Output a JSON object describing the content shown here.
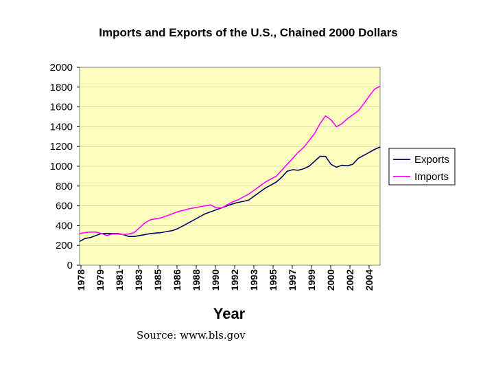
{
  "chart_data": {
    "type": "line",
    "title": "Imports and Exports of the U.S., Chained 2000 Dollars",
    "xlabel": "Year",
    "ylabel": "",
    "ylim": [
      0,
      2000
    ],
    "xlim": [
      1978,
      2005.5
    ],
    "y_ticks": [
      "0",
      "200",
      "400",
      "600",
      "800",
      "1000",
      "1200",
      "1400",
      "1600",
      "1800",
      "2000"
    ],
    "x_ticks": [
      "1978",
      "1979",
      "1981",
      "1983",
      "1985",
      "1986",
      "1988",
      "1990",
      "1992",
      "1993",
      "1995",
      "1997",
      "1999",
      "2000",
      "2002",
      "2004"
    ],
    "grid": "horizontal",
    "legend": "right",
    "background": "#FFFFC0",
    "series": [
      {
        "name": "Exports",
        "color": "#000066",
        "x": [
          1978,
          1978.5,
          1979,
          1979.5,
          1980,
          1980.5,
          1981,
          1981.5,
          1982,
          1982.5,
          1983,
          1983.5,
          1984,
          1984.5,
          1985,
          1985.5,
          1986,
          1986.5,
          1987,
          1987.5,
          1988,
          1988.5,
          1989,
          1989.5,
          1990,
          1990.5,
          1991,
          1991.5,
          1992,
          1992.5,
          1993,
          1993.5,
          1994,
          1994.5,
          1995,
          1995.5,
          1996,
          1996.5,
          1997,
          1997.5,
          1998,
          1998.5,
          1999,
          1999.5,
          2000,
          2000.5,
          2001,
          2001.5,
          2002,
          2002.5,
          2003,
          2003.5,
          2004,
          2004.5,
          2005,
          2005.5
        ],
        "values": [
          240,
          270,
          280,
          300,
          320,
          320,
          320,
          320,
          310,
          290,
          290,
          300,
          310,
          320,
          325,
          330,
          340,
          350,
          370,
          400,
          430,
          460,
          490,
          520,
          540,
          560,
          580,
          600,
          620,
          635,
          645,
          660,
          700,
          740,
          780,
          810,
          840,
          890,
          950,
          965,
          960,
          975,
          1000,
          1050,
          1100,
          1100,
          1020,
          990,
          1010,
          1005,
          1020,
          1080,
          1110,
          1140,
          1170,
          1195
        ]
      },
      {
        "name": "Imports",
        "color": "#FF00FF",
        "x": [
          1978,
          1978.5,
          1979,
          1979.5,
          1980,
          1980.5,
          1981,
          1981.5,
          1982,
          1982.5,
          1983,
          1983.5,
          1984,
          1984.5,
          1985,
          1985.5,
          1986,
          1986.5,
          1987,
          1987.5,
          1988,
          1988.5,
          1989,
          1989.5,
          1990,
          1990.5,
          1991,
          1991.5,
          1992,
          1992.5,
          1993,
          1993.5,
          1994,
          1994.5,
          1995,
          1995.5,
          1996,
          1996.5,
          1997,
          1997.5,
          1998,
          1998.5,
          1999,
          1999.5,
          2000,
          2000.5,
          2001,
          2001.5,
          2002,
          2002.5,
          2003,
          2003.5,
          2004,
          2004.5,
          2005,
          2005.5
        ],
        "values": [
          320,
          330,
          335,
          335,
          320,
          300,
          315,
          315,
          310,
          315,
          330,
          380,
          430,
          460,
          470,
          480,
          500,
          520,
          540,
          555,
          570,
          580,
          590,
          600,
          610,
          580,
          580,
          610,
          640,
          660,
          690,
          720,
          760,
          800,
          840,
          870,
          900,
          960,
          1020,
          1080,
          1140,
          1190,
          1260,
          1330,
          1430,
          1510,
          1470,
          1400,
          1430,
          1480,
          1520,
          1560,
          1630,
          1710,
          1780,
          1810
        ]
      }
    ]
  },
  "footer": {
    "source": "Source: www.bls.gov"
  }
}
